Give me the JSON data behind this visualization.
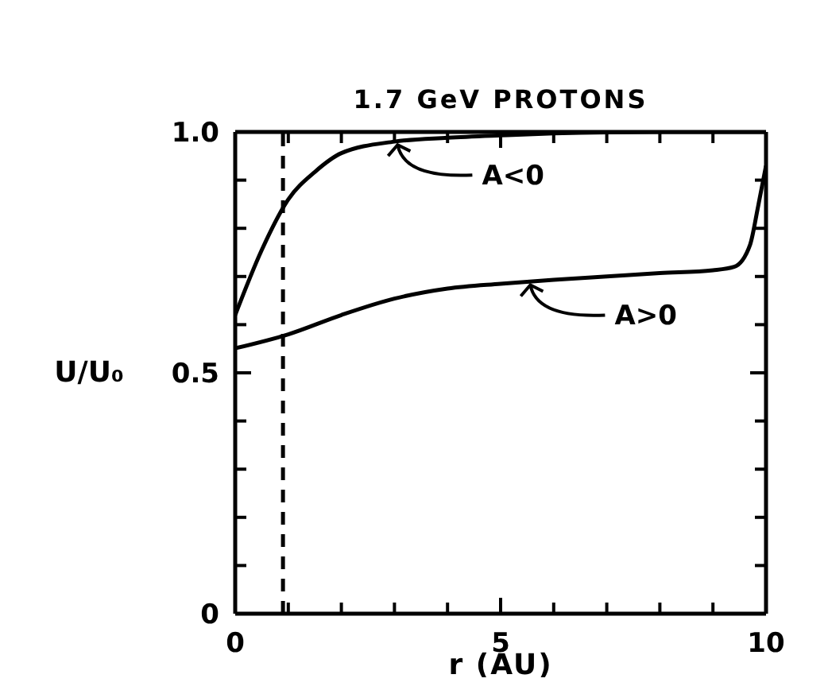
{
  "chart_data": {
    "type": "line",
    "title": "1.7 GeV PROTONS",
    "xlabel": "r (AU)",
    "ylabel": "U/U₀",
    "xlim": [
      0,
      10
    ],
    "ylim": [
      0,
      1
    ],
    "xticks": [
      0,
      {
        "value": 1,
        "label": null
      },
      {
        "value": 2,
        "label": null
      },
      {
        "value": 3,
        "label": null
      },
      {
        "value": 4,
        "label": null
      },
      5,
      {
        "value": 6,
        "label": null
      },
      {
        "value": 7,
        "label": null
      },
      {
        "value": 8,
        "label": null
      },
      {
        "value": 9,
        "label": null
      },
      10
    ],
    "yticks": [
      0,
      {
        "value": 0.1,
        "label": null
      },
      {
        "value": 0.2,
        "label": null
      },
      {
        "value": 0.3,
        "label": null
      },
      {
        "value": 0.4,
        "label": null
      },
      0.5,
      {
        "value": 0.6,
        "label": null
      },
      {
        "value": 0.7,
        "label": null
      },
      {
        "value": 0.8,
        "label": null
      },
      {
        "value": 0.9,
        "label": null
      },
      {
        "value": 1,
        "label": "1.0"
      }
    ],
    "marker": "none",
    "line_style": "solid",
    "series": [
      {
        "color": "#000000",
        "x": [
          0,
          0.5,
          1,
          1.5,
          2,
          3,
          4,
          5,
          6,
          8,
          10
        ],
        "values": [
          0.62,
          0.755,
          0.86,
          0.917,
          0.956,
          0.98,
          0.988,
          0.993,
          0.997,
          1,
          1
        ]
      },
      {
        "color": "#000000",
        "x": [
          0,
          1,
          2,
          3,
          4,
          5,
          6,
          7,
          8,
          9,
          9.4,
          9.7,
          9.85,
          10
        ],
        "values": [
          0.551,
          0.58,
          0.62,
          0.654,
          0.675,
          0.685,
          0.693,
          0.7,
          0.707,
          0.713,
          0.72,
          0.766,
          0.845,
          0.93
        ]
      }
    ],
    "ref_lines": [
      {
        "axis": "x",
        "value": 0.9,
        "color": "#000000",
        "line_style": "dashed"
      }
    ],
    "annotations": [
      {
        "text": "A<0",
        "x": 3,
        "y": 0.98
      },
      {
        "text": "A>0",
        "x": 5.5,
        "y": 0.69
      }
    ]
  }
}
